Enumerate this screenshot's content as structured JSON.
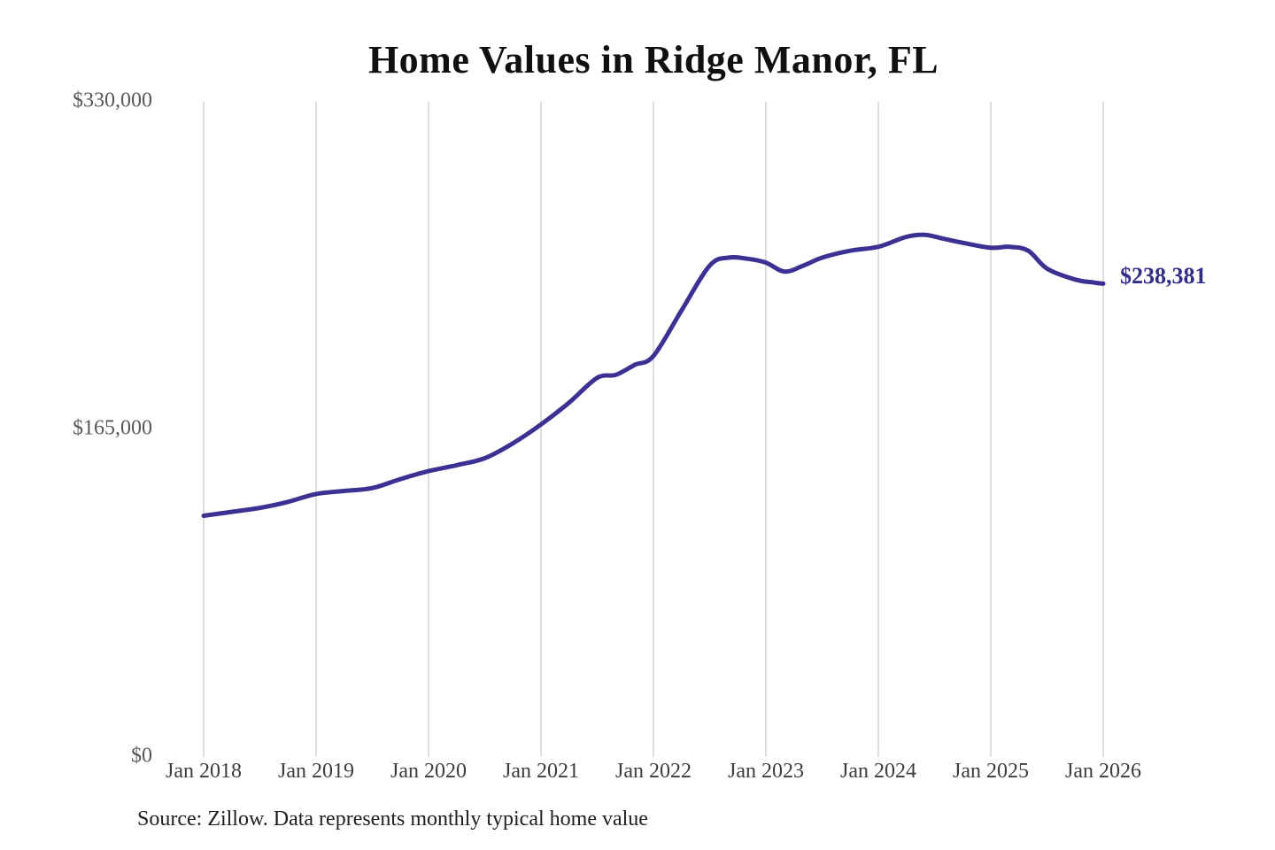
{
  "chart": {
    "title": "Home Values in Ridge Manor, FL",
    "end_label": "$238,381",
    "source_note": "Source: Zillow. Data represents monthly typical home value"
  },
  "chart_data": {
    "type": "line",
    "title": "Home Values in Ridge Manor, FL",
    "series_name": "Monthly typical home value (USD)",
    "ylim": [
      0,
      330000
    ],
    "grid": "vertical-only",
    "legend": "none",
    "line_color": "#3a3193",
    "end_label_color": "#322e86",
    "x_tick_labels": [
      "Jan 2018",
      "Jan 2019",
      "Jan 2020",
      "Jan 2021",
      "Jan 2022",
      "Jan 2023",
      "Jan 2024",
      "Jan 2025",
      "Jan 2026"
    ],
    "y_ticks": [
      {
        "label": "$0",
        "value": 0
      },
      {
        "label": "$165,000",
        "value": 165000
      },
      {
        "label": "$330,000",
        "value": 330000
      }
    ],
    "end_value": 238381,
    "points": [
      {
        "date": "2018-01",
        "value": 121500
      },
      {
        "date": "2018-04",
        "value": 123500
      },
      {
        "date": "2018-07",
        "value": 125500
      },
      {
        "date": "2018-10",
        "value": 128500
      },
      {
        "date": "2019-01",
        "value": 132500
      },
      {
        "date": "2019-04",
        "value": 134000
      },
      {
        "date": "2019-07",
        "value": 135500
      },
      {
        "date": "2019-10",
        "value": 140000
      },
      {
        "date": "2020-01",
        "value": 144000
      },
      {
        "date": "2020-04",
        "value": 147000
      },
      {
        "date": "2020-07",
        "value": 150500
      },
      {
        "date": "2020-10",
        "value": 158000
      },
      {
        "date": "2021-01",
        "value": 167500
      },
      {
        "date": "2021-04",
        "value": 178500
      },
      {
        "date": "2021-07",
        "value": 191000
      },
      {
        "date": "2021-09",
        "value": 192500
      },
      {
        "date": "2021-11",
        "value": 197500
      },
      {
        "date": "2022-01",
        "value": 202000
      },
      {
        "date": "2022-04",
        "value": 225000
      },
      {
        "date": "2022-07",
        "value": 247500
      },
      {
        "date": "2022-09",
        "value": 251500
      },
      {
        "date": "2022-11",
        "value": 251000
      },
      {
        "date": "2023-01",
        "value": 249000
      },
      {
        "date": "2023-03",
        "value": 244500
      },
      {
        "date": "2023-05",
        "value": 247500
      },
      {
        "date": "2023-07",
        "value": 251500
      },
      {
        "date": "2023-10",
        "value": 255000
      },
      {
        "date": "2024-01",
        "value": 257000
      },
      {
        "date": "2024-04",
        "value": 262000
      },
      {
        "date": "2024-06",
        "value": 263000
      },
      {
        "date": "2024-08",
        "value": 261000
      },
      {
        "date": "2024-10",
        "value": 259000
      },
      {
        "date": "2025-01",
        "value": 256500
      },
      {
        "date": "2025-03",
        "value": 257000
      },
      {
        "date": "2025-05",
        "value": 255000
      },
      {
        "date": "2025-07",
        "value": 246000
      },
      {
        "date": "2025-10",
        "value": 240500
      },
      {
        "date": "2025-12",
        "value": 239000
      },
      {
        "date": "2026-01",
        "value": 238381
      }
    ]
  }
}
